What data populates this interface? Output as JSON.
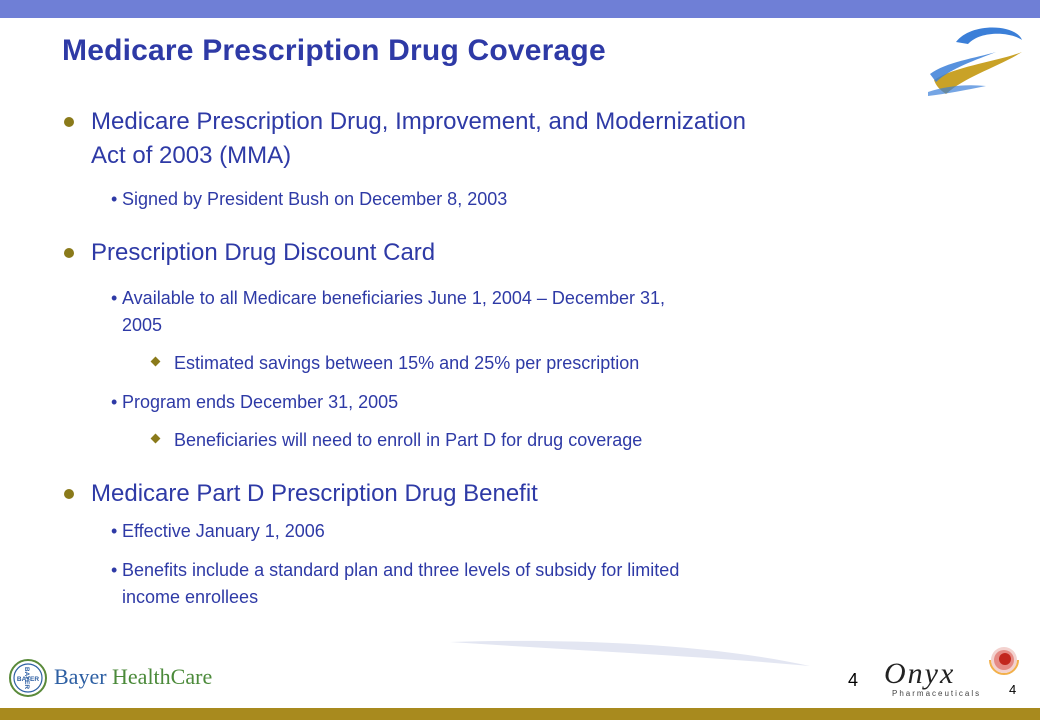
{
  "slide": {
    "title": "Medicare Prescription Drug Coverage",
    "page_number": "4",
    "page_number_logo": "4"
  },
  "bullets": {
    "b1": {
      "line1": "Medicare Prescription Drug, Improvement, and Modernization",
      "line2": "Act of 2003 (MMA)"
    },
    "b1_1": "Signed by President Bush on December 8, 2003",
    "b2": "Prescription Drug Discount Card",
    "b2_1": {
      "line1": "Available to all Medicare beneficiaries June 1, 2004 – December 31,",
      "line2": "2005"
    },
    "b2_1_1": "Estimated savings between 15% and 25% per prescription",
    "b2_2": "Program ends December 31, 2005",
    "b2_2_1": "Beneficiaries will need to enroll in Part D for drug coverage",
    "b3": "Medicare Part D Prescription Drug Benefit",
    "b3_1": "Effective January 1, 2006",
    "b3_2": {
      "line1": "Benefits include a standard plan and three levels of subsidy for limited",
      "line2": "income enrollees"
    }
  },
  "footer": {
    "bayer_brand": "Bayer",
    "bayer_brand_suffix": "HealthCare",
    "bayer_seal_text": "BAYER",
    "onyx_brand": "Onyx",
    "onyx_subtitle": "Pharmaceuticals"
  },
  "colors": {
    "top_bar": "#6f7fd6",
    "bottom_bar": "#a88a1e",
    "title_text": "#2e3aa6",
    "body_text": "#2e3aa6",
    "bullet": "#8a7a1a"
  },
  "icons": [
    "swirl-logo-icon",
    "bayer-cross-icon",
    "onyx-sphere-icon",
    "swoosh-decoration"
  ]
}
